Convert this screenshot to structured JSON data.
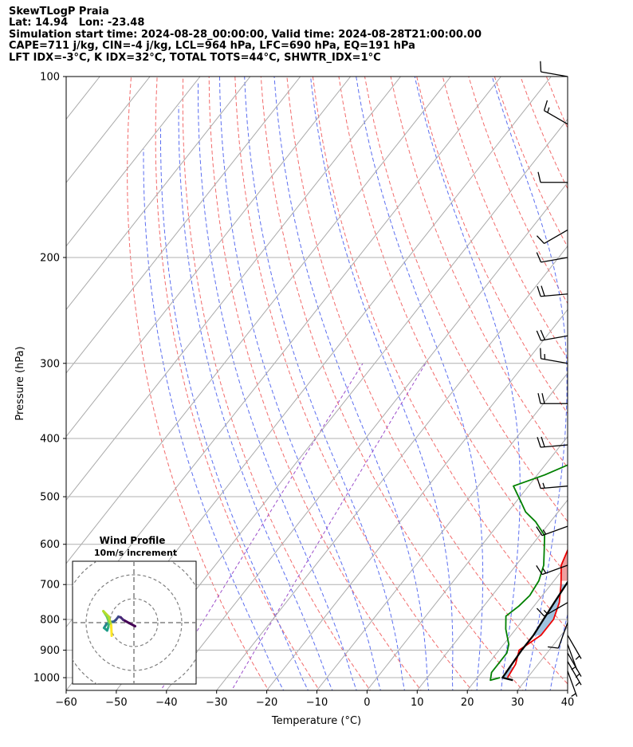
{
  "header": {
    "lines": [
      "SkewTLogP Praia",
      "Lat: 14.94   Lon: -23.48",
      "Simulation start time: 2024-08-28_00:00:00, Valid time: 2024-08-28T21:00:00.00",
      "CAPE=711 j/kg, CIN=-4 j/kg, LCL=964 hPa, LFC=690 hPa, EQ=191 hPa",
      "LFT IDX=-3°C, K IDX=32°C, TOTAL TOTS=44°C, SHWTR_IDX=1°C"
    ]
  },
  "chart_data": [
    {
      "type": "line",
      "subtype": "skew-T log-P",
      "xlabel": "Temperature (°C)",
      "ylabel": "Pressure (hPa)",
      "xlim": [
        -60,
        40
      ],
      "ylim": [
        1050,
        100
      ],
      "y_scale": "log",
      "x_ticks": [
        -60,
        -50,
        -40,
        -30,
        -20,
        -10,
        0,
        10,
        20,
        30,
        40
      ],
      "x_tick_labels": [
        "−60",
        "−50",
        "−40",
        "−30",
        "−20",
        "−10",
        "0",
        "10",
        "20",
        "30",
        "40"
      ],
      "y_ticks": [
        1000,
        900,
        800,
        700,
        600,
        500,
        400,
        300,
        200,
        100
      ],
      "y_tick_labels": [
        "1000",
        "900",
        "800",
        "700",
        "600",
        "500",
        "400",
        "300",
        "200",
        "100"
      ],
      "grid": true,
      "background_lines": {
        "isotherms_color": "#aaaaaa",
        "dry_adiabats_color": "#f26b6b",
        "moist_adiabats_color": "#5b6ef0",
        "mixing_ratio_color": "#9b4dca"
      },
      "series": [
        {
          "color": "#ee0000",
          "points": [
            [
              26,
              1000
            ],
            [
              25.5,
              950
            ],
            [
              24,
              900
            ],
            [
              26,
              850
            ],
            [
              26,
              800
            ],
            [
              24.5,
              750
            ],
            [
              22,
              700
            ],
            [
              19,
              650
            ],
            [
              17.5,
              600
            ],
            [
              17,
              550
            ],
            [
              16.5,
              500
            ],
            [
              15,
              470
            ],
            [
              13,
              450
            ],
            [
              12.2,
              420
            ],
            [
              12,
              400
            ],
            [
              10,
              350
            ],
            [
              7.5,
              310
            ],
            [
              5.5,
              280
            ],
            [
              5,
              270
            ],
            [
              3,
              250
            ],
            [
              1,
              230
            ],
            [
              -2,
              210
            ],
            [
              -3,
              200
            ],
            [
              -5.5,
              190
            ],
            [
              -7.5,
              180
            ],
            [
              -10,
              170
            ],
            [
              -11,
              165
            ],
            [
              -12,
              160
            ],
            [
              -13.5,
              150
            ],
            [
              -15,
              140
            ],
            [
              -16,
              130
            ],
            [
              -15.5,
              120
            ],
            [
              -14,
              110
            ],
            [
              -12,
              100
            ]
          ]
        },
        {
          "color": "#008000",
          "points": [
            [
              24.5,
              1000
            ],
            [
              23,
              1010
            ],
            [
              22,
              980
            ],
            [
              22,
              950
            ],
            [
              22,
              910
            ],
            [
              21,
              880
            ],
            [
              18,
              830
            ],
            [
              16,
              790
            ],
            [
              17,
              760
            ],
            [
              17.5,
              730
            ],
            [
              17,
              690
            ],
            [
              15.5,
              650
            ],
            [
              13,
              610
            ],
            [
              11,
              580
            ],
            [
              7,
              550
            ],
            [
              3.5,
              530
            ],
            [
              1,
              510
            ],
            [
              -3,
              480
            ],
            [
              1.5,
              460
            ],
            [
              5,
              440
            ],
            [
              11,
              420
            ],
            [
              11.5,
              400
            ],
            [
              10,
              360
            ],
            [
              8,
              330
            ],
            [
              4.5,
              290
            ],
            [
              1,
              270
            ],
            [
              -5,
              250
            ],
            [
              -6,
              230
            ],
            [
              -7,
              210
            ],
            [
              -8,
              190
            ],
            [
              -10,
              175
            ],
            [
              -11.5,
              165
            ],
            [
              -13,
              155
            ],
            [
              -14,
              145
            ],
            [
              -15,
              140
            ],
            [
              -17,
              135
            ],
            [
              -19,
              130
            ],
            [
              -20.5,
              125
            ],
            [
              -21,
              120
            ],
            [
              -20,
              115
            ],
            [
              -18.5,
              110
            ],
            [
              -16,
              105
            ],
            [
              -14,
              100
            ]
          ]
        },
        {
          "color": "#000000",
          "points": [
            [
              27.5,
              1010
            ],
            [
              25,
              1000
            ],
            [
              24.8,
              960
            ],
            [
              24.5,
              900
            ],
            [
              24.5,
              850
            ],
            [
              24,
              800
            ],
            [
              23.5,
              750
            ],
            [
              23,
              700
            ],
            [
              22.5,
              650
            ],
            [
              21,
              600
            ],
            [
              19,
              550
            ],
            [
              17,
              500
            ],
            [
              15,
              450
            ],
            [
              12.5,
              400
            ],
            [
              8.5,
              350
            ],
            [
              3.5,
              300
            ],
            [
              -2,
              250
            ],
            [
              -4,
              230
            ],
            [
              -6,
              210
            ],
            [
              -7.5,
              200
            ],
            [
              -9,
              190
            ],
            [
              -11,
              180
            ],
            [
              -12.5,
              170
            ],
            [
              -14.5,
              160
            ],
            [
              -16.5,
              150
            ],
            [
              -18.5,
              140
            ],
            [
              -20.5,
              130
            ],
            [
              -22.5,
              120
            ],
            [
              -24.5,
              110
            ],
            [
              -26.5,
              100
            ]
          ]
        }
      ],
      "shading": {
        "cape_color": "#ef9f9f",
        "cin_color": "#9fc3e0"
      },
      "wind_barbs": [
        {
          "p": 100,
          "spd": 10,
          "dir": 280
        },
        {
          "p": 120,
          "spd": 15,
          "dir": 300
        },
        {
          "p": 150,
          "spd": 10,
          "dir": 270
        },
        {
          "p": 180,
          "spd": 10,
          "dir": 240
        },
        {
          "p": 200,
          "spd": 10,
          "dir": 260
        },
        {
          "p": 230,
          "spd": 20,
          "dir": 265
        },
        {
          "p": 270,
          "spd": 20,
          "dir": 260
        },
        {
          "p": 300,
          "spd": 15,
          "dir": 280
        },
        {
          "p": 350,
          "spd": 20,
          "dir": 270
        },
        {
          "p": 410,
          "spd": 20,
          "dir": 265
        },
        {
          "p": 480,
          "spd": 15,
          "dir": 265
        },
        {
          "p": 560,
          "spd": 15,
          "dir": 250
        },
        {
          "p": 650,
          "spd": 15,
          "dir": 250
        },
        {
          "p": 750,
          "spd": 15,
          "dir": 240
        },
        {
          "p": 810,
          "spd": 10,
          "dir": 200
        },
        {
          "p": 850,
          "spd": 5,
          "dir": 150
        },
        {
          "p": 880,
          "spd": 5,
          "dir": 160
        },
        {
          "p": 910,
          "spd": 5,
          "dir": 150
        },
        {
          "p": 940,
          "spd": 5,
          "dir": 150
        },
        {
          "p": 975,
          "spd": 5,
          "dir": 160
        }
      ]
    },
    {
      "type": "line",
      "subtype": "hodograph",
      "title": "Wind Profile",
      "subtitle": "10m/s increment",
      "units": "m/s",
      "ring_increment": 10,
      "xlim": [
        -25,
        25
      ],
      "ylim": [
        -25,
        25
      ],
      "points": [
        [
          0.5,
          -1.5
        ],
        [
          -2,
          -0.2
        ],
        [
          -4.5,
          1.2
        ],
        [
          -5.5,
          2.2
        ],
        [
          -6.5,
          2.5
        ],
        [
          -7.5,
          1.2
        ],
        [
          -8.5,
          0.4
        ],
        [
          -10,
          0.3
        ],
        [
          -11.5,
          -0.6
        ],
        [
          -12.5,
          -2.2
        ],
        [
          -11.2,
          -3.3
        ],
        [
          -10.7,
          -1.8
        ],
        [
          -10.5,
          0.2
        ],
        [
          -11.3,
          2.5
        ],
        [
          -12.8,
          4.8
        ],
        [
          -10.5,
          2.5
        ],
        [
          -9.5,
          -1.2
        ],
        [
          -9.3,
          -5.5
        ]
      ],
      "colors": [
        "#440154",
        "#482878",
        "#3e4989",
        "#31688e",
        "#26828e",
        "#1f9e89",
        "#35b779",
        "#6ece58",
        "#b5de2b",
        "#fde725"
      ]
    }
  ]
}
